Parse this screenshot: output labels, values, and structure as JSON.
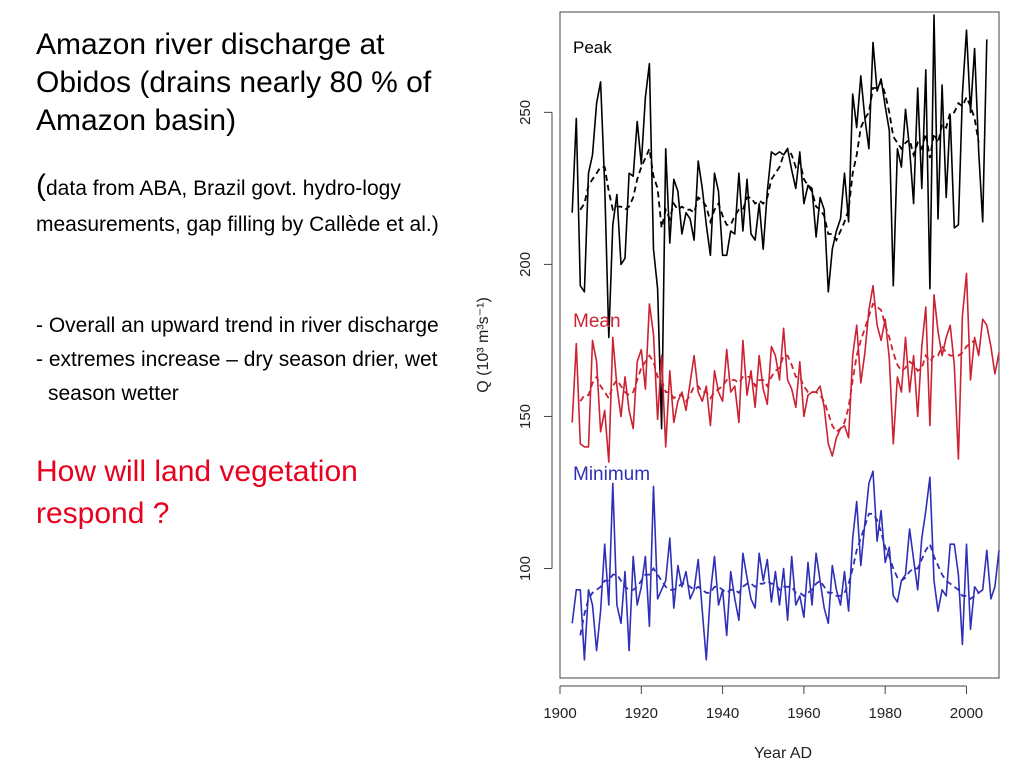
{
  "slide": {
    "title": "Amazon river discharge at Obidos (drains nearly 80 % of Amazon basin)",
    "source_paren": "(",
    "source_text": "data from ABA, Brazil govt. hydro-logy measurements, gap filling by Callède et al.)",
    "bullets": [
      "- Overall an upward trend in river discharge",
      "- extremes increase – dry season drier, wet season wetter"
    ],
    "question": "How will land vegetation respond ?",
    "question_color": "#e8001e"
  },
  "chart_data": {
    "type": "line",
    "xlabel": "Year AD",
    "ylabel": "Q (10³ m³s⁻¹)",
    "xlim": [
      1900,
      2008
    ],
    "ylim": [
      64,
      283
    ],
    "xticks": [
      1900,
      1920,
      1940,
      1960,
      1980,
      2000
    ],
    "yticks": [
      100,
      150,
      200,
      250
    ],
    "grid": false,
    "series": [
      {
        "name": "Peak",
        "color": "#000000",
        "start_year": 1903,
        "values": [
          217,
          248,
          193,
          191,
          230,
          236,
          253,
          260,
          226,
          176,
          213,
          223,
          200,
          202,
          230,
          229,
          247,
          233,
          255,
          266,
          205,
          192,
          146,
          238,
          207,
          228,
          224,
          210,
          217,
          215,
          208,
          234,
          225,
          213,
          203,
          230,
          224,
          203,
          203,
          211,
          210,
          230,
          211,
          228,
          210,
          208,
          220,
          205,
          224,
          237,
          236,
          237,
          236,
          238,
          231,
          225,
          237,
          220,
          226,
          225,
          209,
          222,
          218,
          191,
          205,
          211,
          215,
          230,
          214,
          256,
          245,
          262,
          248,
          238,
          273,
          257,
          261,
          252,
          244,
          193,
          238,
          232,
          251,
          238,
          220,
          258,
          225,
          264,
          192,
          282,
          215,
          259,
          222,
          249,
          212,
          213,
          256,
          277,
          250,
          271,
          237,
          214,
          274
        ],
        "smooth": [
          null,
          null,
          218,
          220,
          226,
          228,
          230,
          232,
          232,
          224,
          218,
          219,
          219,
          218,
          219,
          222,
          228,
          232,
          235,
          238,
          229,
          225,
          212,
          218,
          215,
          220,
          218,
          219,
          218,
          218,
          217,
          222,
          221,
          219,
          214,
          218,
          220,
          216,
          213,
          213,
          216,
          218,
          218,
          222,
          222,
          220,
          221,
          220,
          222,
          228,
          230,
          232,
          236,
          238,
          236,
          232,
          234,
          228,
          226,
          224,
          219,
          218,
          216,
          210,
          210,
          208,
          211,
          214,
          218,
          230,
          236,
          245,
          248,
          250,
          258,
          258,
          260,
          256,
          250,
          242,
          240,
          238,
          240,
          241,
          236,
          240,
          238,
          243,
          235,
          243,
          240,
          246,
          245,
          250,
          250,
          253,
          252,
          255,
          252,
          248,
          240,
          null,
          null
        ]
      },
      {
        "name": "Mean",
        "color": "#cc2233",
        "start_year": 1903,
        "values": [
          148,
          174,
          141,
          140,
          140,
          175,
          168,
          145,
          152,
          135,
          176,
          160,
          150,
          163,
          152,
          146,
          168,
          172,
          159,
          187,
          177,
          149,
          170,
          140,
          165,
          148,
          155,
          158,
          152,
          161,
          170,
          158,
          155,
          160,
          147,
          165,
          158,
          155,
          172,
          158,
          160,
          148,
          175,
          157,
          165,
          153,
          170,
          159,
          154,
          173,
          170,
          162,
          179,
          162,
          159,
          153,
          168,
          150,
          157,
          158,
          158,
          160,
          153,
          141,
          137,
          143,
          146,
          147,
          143,
          170,
          180,
          161,
          171,
          185,
          193,
          180,
          175,
          182,
          169,
          141,
          163,
          158,
          176,
          158,
          170,
          150,
          173,
          186,
          147,
          190,
          178,
          170,
          176,
          180,
          167,
          136,
          183,
          197,
          162,
          176,
          170,
          182,
          180,
          173,
          164,
          171
        ],
        "smooth": [
          null,
          null,
          155,
          157,
          157,
          161,
          163,
          160,
          158,
          156,
          160,
          162,
          160,
          158,
          157,
          158,
          162,
          166,
          168,
          170,
          168,
          163,
          162,
          158,
          158,
          156,
          157,
          157,
          155,
          157,
          160,
          160,
          158,
          158,
          156,
          158,
          159,
          160,
          162,
          162,
          162,
          161,
          163,
          163,
          163,
          160,
          162,
          162,
          160,
          163,
          165,
          166,
          170,
          170,
          167,
          163,
          163,
          160,
          158,
          158,
          158,
          157,
          155,
          151,
          147,
          145,
          146,
          148,
          153,
          162,
          170,
          175,
          179,
          183,
          187,
          186,
          185,
          180,
          176,
          171,
          167,
          165,
          166,
          168,
          167,
          165,
          166,
          170,
          168,
          170,
          170,
          173,
          171,
          170,
          170,
          170,
          171,
          173,
          174,
          175,
          null,
          null,
          null,
          null,
          null,
          null
        ]
      },
      {
        "name": "Minimum",
        "color": "#2f2fb8",
        "start_year": 1903,
        "values": [
          82,
          93,
          93,
          70,
          93,
          88,
          73,
          86,
          108,
          88,
          128,
          88,
          82,
          99,
          73,
          104,
          88,
          94,
          104,
          81,
          127,
          90,
          93,
          96,
          110,
          87,
          101,
          94,
          99,
          90,
          93,
          103,
          86,
          70,
          92,
          104,
          88,
          93,
          78,
          99,
          90,
          83,
          105,
          97,
          90,
          87,
          105,
          96,
          103,
          89,
          99,
          88,
          100,
          83,
          104,
          88,
          91,
          84,
          102,
          88,
          105,
          96,
          87,
          82,
          101,
          93,
          88,
          99,
          86,
          110,
          122,
          101,
          115,
          128,
          132,
          109,
          119,
          102,
          107,
          91,
          89,
          96,
          98,
          113,
          103,
          93,
          110,
          119,
          130,
          96,
          86,
          93,
          91,
          108,
          108,
          98,
          75,
          108,
          80,
          94,
          92,
          93,
          106,
          90,
          94,
          106
        ],
        "smooth": [
          null,
          null,
          78,
          85,
          90,
          92,
          93,
          94,
          96,
          96,
          98,
          98,
          96,
          94,
          93,
          93,
          94,
          96,
          98,
          98,
          100,
          98,
          96,
          94,
          93,
          93,
          94,
          95,
          95,
          94,
          93,
          94,
          93,
          92,
          92,
          94,
          94,
          93,
          92,
          93,
          93,
          92,
          94,
          95,
          95,
          94,
          95,
          95,
          96,
          95,
          95,
          93,
          94,
          94,
          94,
          92,
          92,
          91,
          92,
          93,
          95,
          96,
          94,
          92,
          92,
          91,
          91,
          92,
          95,
          100,
          106,
          110,
          114,
          118,
          118,
          116,
          112,
          107,
          104,
          100,
          97,
          96,
          97,
          99,
          100,
          100,
          103,
          106,
          108,
          104,
          101,
          98,
          96,
          95,
          94,
          93,
          91,
          91,
          90,
          91,
          92,
          null,
          null,
          null,
          null,
          null
        ]
      }
    ]
  }
}
